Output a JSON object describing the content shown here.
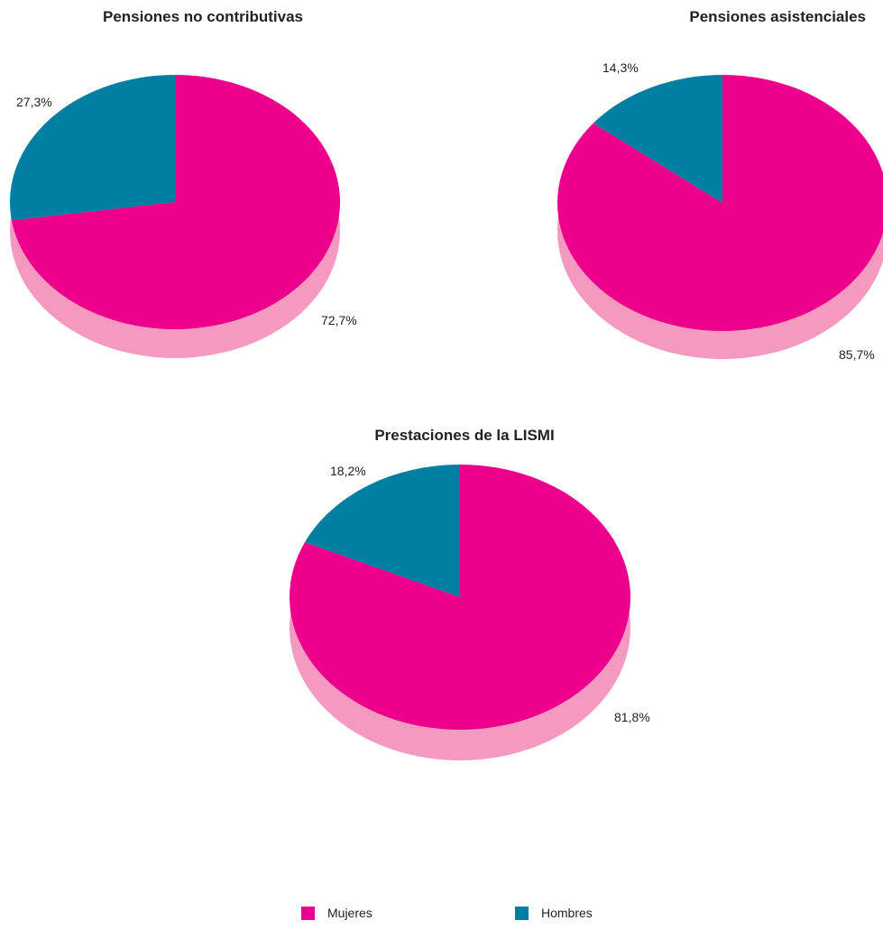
{
  "chart_data": [
    {
      "type": "pie",
      "title": "Pensiones no contributivas",
      "slices": [
        {
          "name": "Mujeres",
          "value": 72.7,
          "label": "72,7%"
        },
        {
          "name": "Hombres",
          "value": 27.3,
          "label": "27,3%"
        }
      ]
    },
    {
      "type": "pie",
      "title": "Pensiones asistenciales",
      "slices": [
        {
          "name": "Mujeres",
          "value": 85.7,
          "label": "85,7%"
        },
        {
          "name": "Hombres",
          "value": 14.3,
          "label": "14,3%"
        }
      ]
    },
    {
      "type": "pie",
      "title": "Prestaciones de la LISMI",
      "slices": [
        {
          "name": "Mujeres",
          "value": 81.8,
          "label": "81,8%"
        },
        {
          "name": "Hombres",
          "value": 18.2,
          "label": "18,2%"
        }
      ]
    }
  ],
  "legend": [
    {
      "name": "Mujeres",
      "label": "Mujeres"
    },
    {
      "name": "Hombres",
      "label": "Hombres"
    }
  ],
  "colors": {
    "Mujeres": "#ec008c",
    "Mujeres_side": "#f49ac1",
    "Hombres": "#007fa3"
  }
}
